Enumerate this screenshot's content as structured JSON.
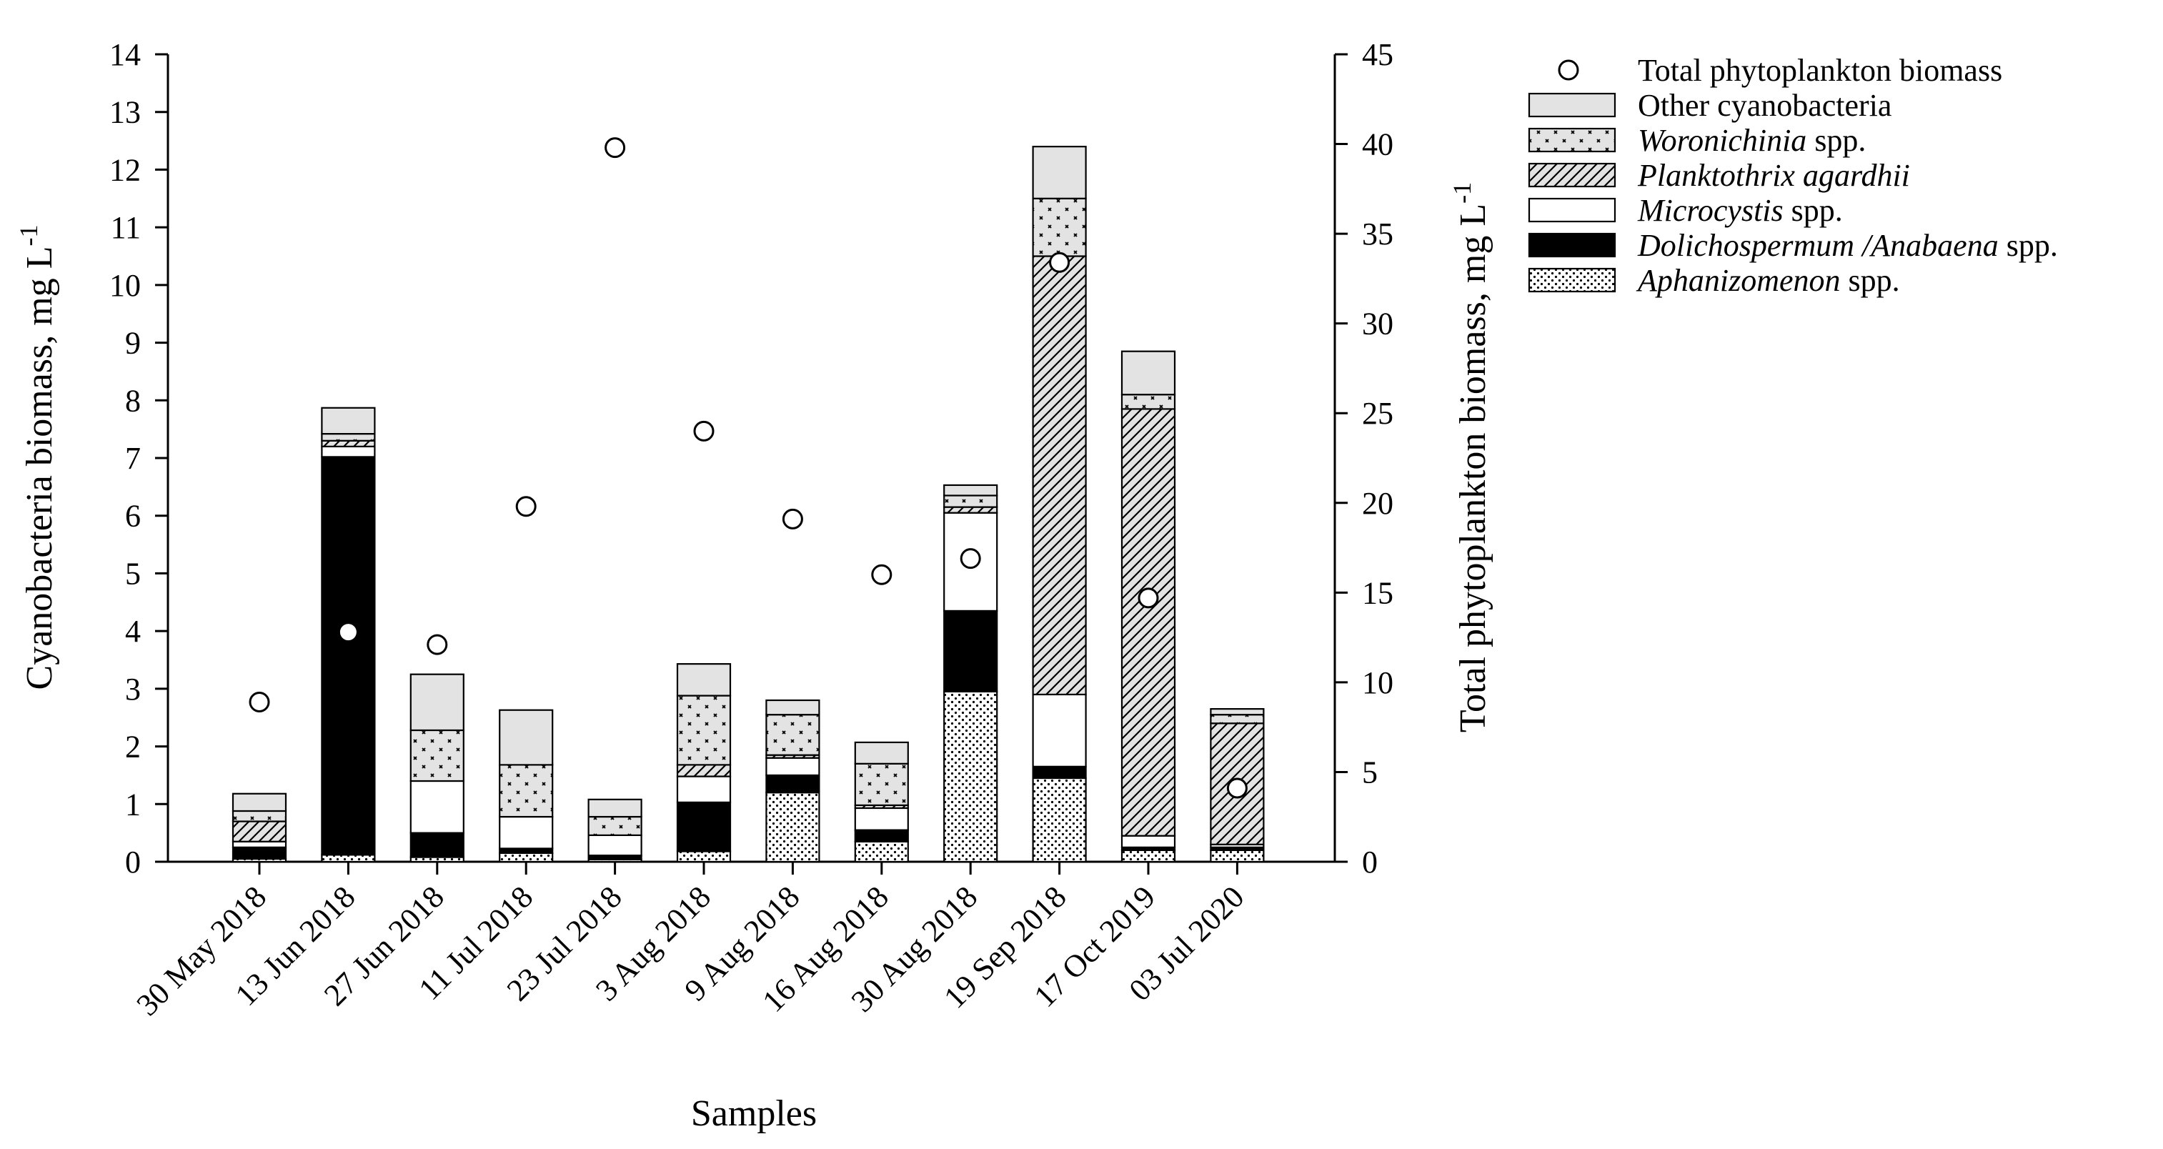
{
  "chart_data": {
    "type": "bar",
    "stacked": true,
    "categories": [
      "30 May 2018",
      "13 Jun 2018",
      "27 Jun 2018",
      "11 Jul 2018",
      "23 Jul 2018",
      "3 Aug 2018",
      "9 Aug 2018",
      "16 Aug 2018",
      "30 Aug 2018",
      "19 Sep 2018",
      "17 Oct 2019",
      "03 Jul 2020"
    ],
    "xlabel": "Samples",
    "ylabel": "Cyanobacteria biomass, mg L",
    "ylabel_sup": "-1",
    "y2label": "Total phytoplankton biomass, mg L",
    "y2label_sup": "-1",
    "ylim": [
      0,
      14
    ],
    "y2lim": [
      0,
      45
    ],
    "yticks": [
      "0",
      "1",
      "2",
      "3",
      "4",
      "5",
      "6",
      "7",
      "8",
      "9",
      "10",
      "11",
      "12",
      "13",
      "14"
    ],
    "y2ticks": [
      "0",
      "5",
      "10",
      "15",
      "20",
      "25",
      "30",
      "35",
      "40",
      "45"
    ],
    "series": [
      {
        "name": "Aphanizomenon",
        "suffix": " spp.",
        "pattern": "dots",
        "values": [
          0.05,
          0.12,
          0.08,
          0.15,
          0.04,
          0.18,
          1.2,
          0.35,
          2.95,
          1.45,
          0.2,
          0.2
        ]
      },
      {
        "name": "Dolichospermum /Anabaena",
        "suffix": " spp.",
        "pattern": "black",
        "values": [
          0.2,
          6.9,
          0.42,
          0.08,
          0.07,
          0.85,
          0.3,
          0.2,
          1.4,
          0.2,
          0.05,
          0.05
        ]
      },
      {
        "name": "Microcystis",
        "suffix": " spp.",
        "pattern": "white",
        "values": [
          0.1,
          0.18,
          0.9,
          0.55,
          0.35,
          0.45,
          0.3,
          0.38,
          1.7,
          1.25,
          0.2,
          0.05
        ]
      },
      {
        "name": "Planktothrix agardhii",
        "suffix": "",
        "pattern": "hatch",
        "values": [
          0.35,
          0.1,
          0.0,
          0.0,
          0.0,
          0.2,
          0.05,
          0.05,
          0.1,
          7.6,
          7.4,
          2.1
        ]
      },
      {
        "name": "Woronichinia",
        "suffix": " spp.",
        "pattern": "crosses",
        "values": [
          0.18,
          0.12,
          0.88,
          0.9,
          0.32,
          1.2,
          0.7,
          0.72,
          0.2,
          1.0,
          0.25,
          0.15
        ]
      },
      {
        "name": "Other cyanobacteria",
        "suffix": "",
        "pattern": "gray",
        "values": [
          0.3,
          0.45,
          0.97,
          0.95,
          0.3,
          0.55,
          0.25,
          0.37,
          0.18,
          0.9,
          0.75,
          0.1
        ]
      }
    ],
    "total_phytoplankton": {
      "name": "Total phytoplankton biomass",
      "axis": "right",
      "values": [
        8.9,
        12.8,
        12.1,
        19.8,
        39.8,
        24.0,
        19.1,
        16.0,
        16.9,
        33.4,
        14.7,
        4.1
      ]
    },
    "legend": {
      "position": "top-right",
      "entries": [
        {
          "label": "Total phytoplankton biomass",
          "italic": "",
          "suffix": "",
          "marker": "circle"
        },
        {
          "label": "Other cyanobacteria",
          "italic": "",
          "suffix": "",
          "marker": "gray"
        },
        {
          "label": "",
          "italic": "Woronichinia",
          "suffix": " spp.",
          "marker": "crosses"
        },
        {
          "label": "",
          "italic": "Planktothrix agardhii",
          "suffix": "",
          "marker": "hatch"
        },
        {
          "label": "",
          "italic": "Microcystis",
          "suffix": " spp.",
          "marker": "white"
        },
        {
          "label": "",
          "italic": "Dolichospermum /Anabaena",
          "suffix": " spp.",
          "marker": "black"
        },
        {
          "label": "",
          "italic": "Aphanizomenon",
          "suffix": " spp.",
          "marker": "dots"
        }
      ]
    },
    "colors": {
      "black": "#000000",
      "gray": "#e3e3e3",
      "white": "#ffffff"
    }
  }
}
